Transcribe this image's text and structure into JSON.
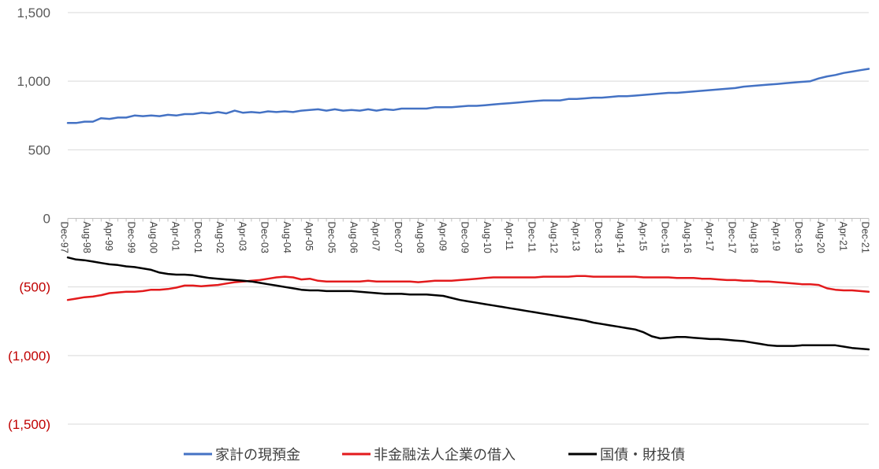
{
  "chart_data": {
    "type": "line",
    "title": "",
    "xlabel": "",
    "ylabel": "",
    "ylim": [
      -1500,
      1500
    ],
    "y_ticks": [
      {
        "value": 1500,
        "label": "1,500",
        "color": "#595959"
      },
      {
        "value": 1000,
        "label": "1,000",
        "color": "#595959"
      },
      {
        "value": 500,
        "label": "500",
        "color": "#595959"
      },
      {
        "value": 0,
        "label": "0",
        "color": "#595959"
      },
      {
        "value": -500,
        "label": "(500)",
        "color": "#c00000"
      },
      {
        "value": -1000,
        "label": "(1,000)",
        "color": "#c00000"
      },
      {
        "value": -1500,
        "label": "(1,500)",
        "color": "#c00000"
      }
    ],
    "x_tick_labels": [
      "Dec-97",
      "Aug-98",
      "Apr-99",
      "Dec-99",
      "Aug-00",
      "Apr-01",
      "Dec-01",
      "Aug-02",
      "Apr-03",
      "Dec-03",
      "Aug-04",
      "Apr-05",
      "Dec-05",
      "Aug-06",
      "Apr-07",
      "Dec-07",
      "Aug-08",
      "Apr-09",
      "Dec-09",
      "Aug-10",
      "Apr-11",
      "Dec-11",
      "Aug-12",
      "Apr-13",
      "Dec-13",
      "Aug-14",
      "Apr-15",
      "Dec-15",
      "Aug-16",
      "Apr-17",
      "Dec-17",
      "Aug-18",
      "Apr-19",
      "Dec-19",
      "Aug-20",
      "Apr-21",
      "Dec-21"
    ],
    "grid": "horizontal",
    "legend": "bottom",
    "series": [
      {
        "name": "家計の現預金",
        "color": "#4472c4",
        "values": [
          695,
          695,
          705,
          705,
          730,
          725,
          735,
          735,
          750,
          745,
          750,
          745,
          755,
          750,
          760,
          760,
          770,
          765,
          775,
          765,
          785,
          770,
          775,
          770,
          780,
          775,
          780,
          775,
          785,
          790,
          795,
          785,
          795,
          785,
          790,
          785,
          795,
          785,
          795,
          790,
          800,
          800,
          800,
          800,
          810,
          810,
          810,
          815,
          820,
          820,
          825,
          830,
          835,
          840,
          845,
          850,
          855,
          860,
          860,
          860,
          870,
          870,
          875,
          880,
          880,
          885,
          890,
          890,
          895,
          900,
          905,
          910,
          915,
          915,
          920,
          925,
          930,
          935,
          940,
          945,
          950,
          960,
          965,
          970,
          975,
          980,
          985,
          990,
          995,
          1000,
          1020,
          1035,
          1045,
          1060,
          1070,
          1080,
          1090
        ]
      },
      {
        "name": "非金融法人企業の借入",
        "color": "#e31a1c",
        "values": [
          -595,
          -585,
          -575,
          -570,
          -560,
          -545,
          -540,
          -535,
          -535,
          -530,
          -520,
          -520,
          -515,
          -505,
          -490,
          -490,
          -495,
          -490,
          -485,
          -475,
          -465,
          -460,
          -455,
          -450,
          -440,
          -430,
          -425,
          -430,
          -445,
          -440,
          -455,
          -460,
          -460,
          -460,
          -460,
          -460,
          -455,
          -460,
          -460,
          -460,
          -460,
          -460,
          -465,
          -460,
          -455,
          -455,
          -455,
          -450,
          -445,
          -440,
          -435,
          -430,
          -430,
          -430,
          -430,
          -430,
          -430,
          -425,
          -425,
          -425,
          -425,
          -420,
          -420,
          -425,
          -425,
          -425,
          -425,
          -425,
          -425,
          -430,
          -430,
          -430,
          -430,
          -435,
          -435,
          -435,
          -440,
          -440,
          -445,
          -450,
          -450,
          -455,
          -455,
          -460,
          -460,
          -465,
          -470,
          -475,
          -480,
          -480,
          -485,
          -510,
          -520,
          -525,
          -525,
          -530,
          -535
        ]
      },
      {
        "name": "国債・財投債",
        "color": "#000000",
        "values": [
          -285,
          -300,
          -305,
          -315,
          -325,
          -335,
          -340,
          -350,
          -355,
          -365,
          -375,
          -395,
          -405,
          -410,
          -410,
          -415,
          -425,
          -435,
          -440,
          -445,
          -450,
          -455,
          -460,
          -470,
          -480,
          -490,
          -500,
          -510,
          -520,
          -525,
          -525,
          -530,
          -530,
          -530,
          -530,
          -535,
          -540,
          -545,
          -550,
          -550,
          -550,
          -555,
          -555,
          -555,
          -560,
          -565,
          -580,
          -595,
          -605,
          -615,
          -625,
          -635,
          -645,
          -655,
          -665,
          -675,
          -685,
          -695,
          -705,
          -715,
          -725,
          -735,
          -745,
          -760,
          -770,
          -780,
          -790,
          -800,
          -810,
          -830,
          -860,
          -875,
          -870,
          -865,
          -865,
          -870,
          -875,
          -880,
          -880,
          -885,
          -890,
          -895,
          -905,
          -915,
          -925,
          -930,
          -930,
          -930,
          -925,
          -925,
          -925,
          -925,
          -925,
          -935,
          -945,
          -950,
          -955
        ]
      }
    ]
  }
}
